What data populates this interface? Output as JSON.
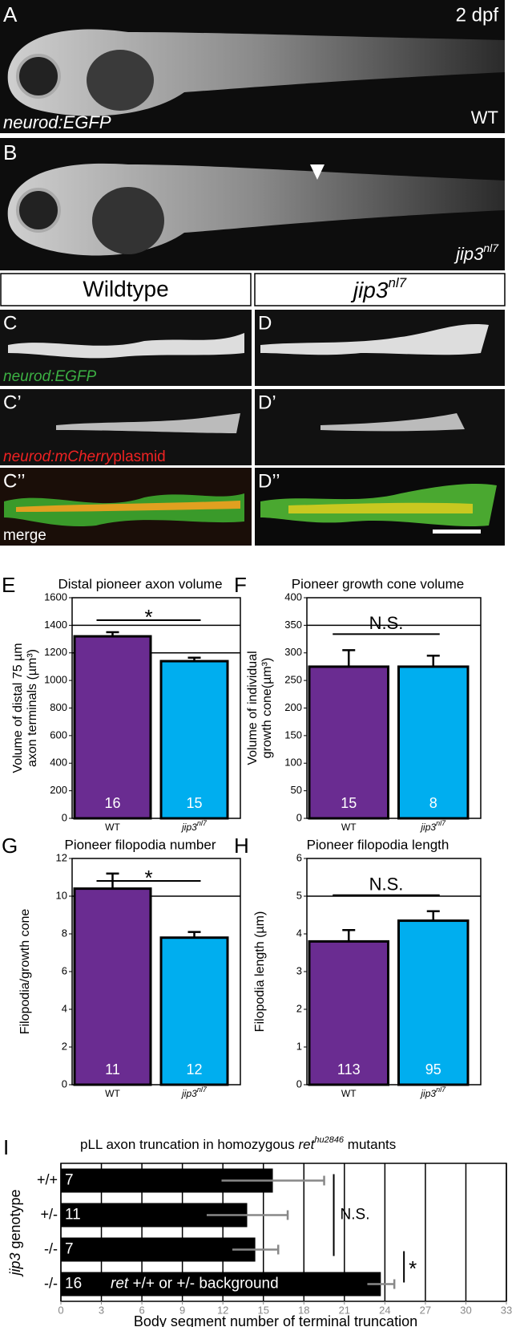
{
  "panels": {
    "A": {
      "label": "A",
      "stage": "2 dpf",
      "marker": "neurod:EGFP",
      "genotype": "WT"
    },
    "B": {
      "label": "B",
      "genotype": "jip3",
      "genotype_sup": "nl7"
    },
    "headers": {
      "left": "Wildtype",
      "right": "jip3",
      "right_sup": "nl7"
    },
    "C": {
      "label": "C",
      "marker": "neurod:EGFP"
    },
    "C1": {
      "label": "C’",
      "marker": "neurod:mCherry",
      "marker_suffix": "plasmid"
    },
    "C2": {
      "label": "C’’",
      "marker": "merge"
    },
    "D": {
      "label": "D"
    },
    "D1": {
      "label": "D’"
    },
    "D2": {
      "label": "D’’"
    }
  },
  "chart_data": [
    {
      "type": "bar",
      "panel": "E",
      "title": "Distal pioneer axon volume",
      "ylabel": [
        "Volume of distal 75 µm",
        "axon terminals (µm³)"
      ],
      "categories": [
        "WT",
        "jip3"
      ],
      "category_sup": [
        null,
        "nl7"
      ],
      "values": [
        1320,
        1140
      ],
      "errors": [
        30,
        25
      ],
      "n": [
        16,
        15
      ],
      "colors": [
        "#6a2c91",
        "#00aeef"
      ],
      "ylim": [
        0,
        1600
      ],
      "yticks": [
        0,
        200,
        400,
        600,
        800,
        1000,
        1200,
        1400,
        1600
      ],
      "grid": [
        1200,
        1400
      ],
      "significance": "*"
    },
    {
      "type": "bar",
      "panel": "F",
      "title": "Pioneer growth cone volume",
      "ylabel": [
        "Volume of individual",
        "growth cone(µm³)"
      ],
      "categories": [
        "WT",
        "jip3"
      ],
      "category_sup": [
        null,
        "nl7"
      ],
      "values": [
        275,
        275
      ],
      "errors": [
        30,
        20
      ],
      "n": [
        15,
        8
      ],
      "colors": [
        "#6a2c91",
        "#00aeef"
      ],
      "ylim": [
        0,
        400
      ],
      "yticks": [
        0,
        50,
        100,
        150,
        200,
        250,
        300,
        350,
        400
      ],
      "grid": [
        350
      ],
      "significance": "N.S."
    },
    {
      "type": "bar",
      "panel": "G",
      "title": "Pioneer filopodia number",
      "ylabel": [
        "Filopodia/growth cone"
      ],
      "categories": [
        "WT",
        "jip3"
      ],
      "category_sup": [
        null,
        "nl7"
      ],
      "values": [
        10.4,
        7.8
      ],
      "errors": [
        0.8,
        0.3
      ],
      "n": [
        11,
        12
      ],
      "colors": [
        "#6a2c91",
        "#00aeef"
      ],
      "ylim": [
        0,
        12
      ],
      "yticks": [
        0,
        2,
        4,
        6,
        8,
        10,
        12
      ],
      "grid": [
        10
      ],
      "significance": "*"
    },
    {
      "type": "bar",
      "panel": "H",
      "title": "Pioneer filopodia length",
      "ylabel": [
        "Filopodia length (µm)"
      ],
      "categories": [
        "WT",
        "jip3"
      ],
      "category_sup": [
        null,
        "nl7"
      ],
      "values": [
        3.8,
        4.35
      ],
      "errors": [
        0.3,
        0.25
      ],
      "n": [
        113,
        95
      ],
      "colors": [
        "#6a2c91",
        "#00aeef"
      ],
      "ylim": [
        0,
        6
      ],
      "yticks": [
        0,
        1,
        2,
        3,
        4,
        5,
        6
      ],
      "grid": [
        5
      ],
      "significance": "N.S."
    },
    {
      "type": "barh",
      "panel": "I",
      "title": "pLL axon truncation in homozygous ",
      "title_italic": "ret",
      "title_sup": "hu2846",
      "title_end": " mutants",
      "ylabel_italic": "jip3",
      "ylabel": " genotype",
      "categories": [
        "+/+",
        "+/-",
        "-/-",
        "-/-"
      ],
      "values": [
        15.7,
        13.8,
        14.4,
        23.7
      ],
      "errors": [
        3.8,
        3,
        1.7,
        1
      ],
      "n": [
        7,
        11,
        7,
        16
      ],
      "color": "#000000",
      "bar_note_italic": "ret",
      "bar_note": " +/+ or +/- background",
      "xlabel": "Body segment number of terminal truncation",
      "xlim": [
        0,
        33
      ],
      "xticks": [
        0,
        3,
        6,
        9,
        12,
        15,
        18,
        21,
        24,
        27,
        30,
        33
      ],
      "grid": true,
      "significance": [
        "N.S.",
        "*"
      ]
    }
  ]
}
